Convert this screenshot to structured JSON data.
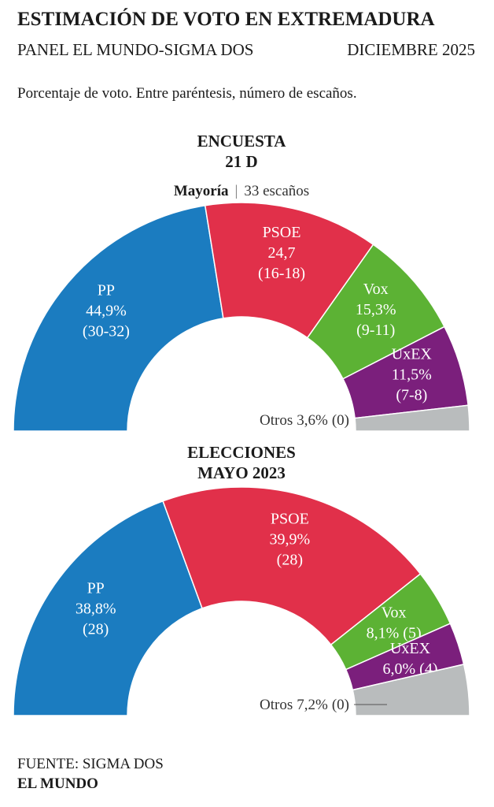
{
  "header": {
    "title": "ESTIMACIÓN DE VOTO EN EXTREMADURA",
    "subtitle": "PANEL EL MUNDO-SIGMA DOS",
    "date": "DICIEMBRE 2025",
    "note": "Porcentaje de voto. Entre paréntesis, número de escaños."
  },
  "chart_data": [
    {
      "type": "semicircle",
      "title": "ENCUESTA",
      "subtitle": "21 D",
      "majority_label": "Mayoría",
      "majority_seats": "33 escaños",
      "categories": [
        "PP",
        "PSOE",
        "Vox",
        "UxEX",
        "Otros"
      ],
      "values": [
        44.9,
        24.7,
        15.3,
        11.5,
        3.6
      ],
      "value_labels": [
        "44,9%",
        "24,7",
        "15,3%",
        "11,5%",
        "3,6%"
      ],
      "seats": [
        "(30-32)",
        "(16-18)",
        "(9-11)",
        "(7-8)",
        "(0)"
      ],
      "colors": [
        "#1b7cc0",
        "#e1304a",
        "#5cb234",
        "#7b1f7c",
        "#b9bcbd"
      ]
    },
    {
      "type": "semicircle",
      "title": "ELECCIONES",
      "subtitle": "MAYO 2023",
      "categories": [
        "PP",
        "PSOE",
        "Vox",
        "UxEX",
        "Otros"
      ],
      "values": [
        38.8,
        39.9,
        8.1,
        6.0,
        7.2
      ],
      "value_labels": [
        "38,8%",
        "39,9%",
        "8,1%",
        "6,0%",
        "7,2%"
      ],
      "seats": [
        "(28)",
        "(28)",
        "(5)",
        "(4)",
        "(0)"
      ],
      "colors": [
        "#1b7cc0",
        "#e1304a",
        "#5cb234",
        "#7b1f7c",
        "#b9bcbd"
      ]
    }
  ],
  "footer": {
    "source": "FUENTE: SIGMA DOS",
    "brand": "EL MUNDO"
  }
}
